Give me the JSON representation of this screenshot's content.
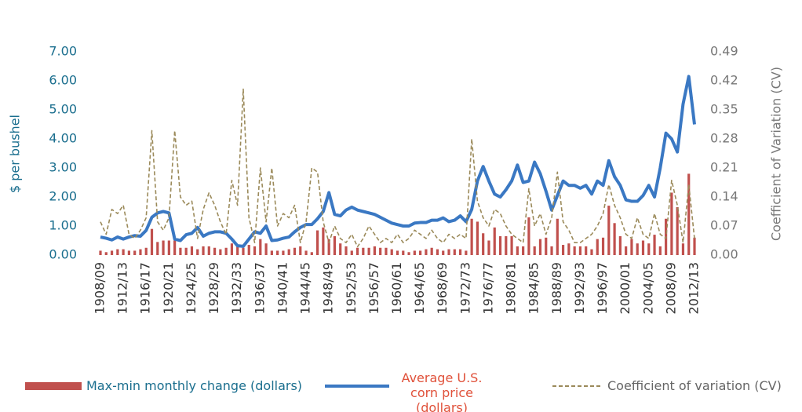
{
  "chart_data": {
    "type": "combo",
    "categories": [
      "1908/09",
      null,
      null,
      null,
      "1912/13",
      null,
      null,
      null,
      "1916/17",
      null,
      null,
      null,
      "1920/21",
      null,
      null,
      null,
      "1924/25",
      null,
      null,
      null,
      "1928/29",
      null,
      null,
      null,
      "1932/33",
      null,
      null,
      null,
      "1936/37",
      null,
      null,
      null,
      "1940/41",
      null,
      null,
      null,
      "1944/45",
      null,
      null,
      null,
      "1948/49",
      null,
      null,
      null,
      "1952/53",
      null,
      null,
      null,
      "1956/57",
      null,
      null,
      null,
      "1960/61",
      null,
      null,
      null,
      "1964/65",
      null,
      null,
      null,
      "1968/69",
      null,
      null,
      null,
      "1972/73",
      null,
      null,
      null,
      "1976/77",
      null,
      null,
      null,
      "1980/81",
      null,
      null,
      null,
      "1984/85",
      null,
      null,
      null,
      "1988/89",
      null,
      null,
      null,
      "1992/93",
      null,
      null,
      null,
      "1996/97",
      null,
      null,
      null,
      "2000/01",
      null,
      null,
      null,
      "2004/05",
      null,
      null,
      null,
      "2008/09",
      null,
      null,
      null,
      "2012/13"
    ],
    "series": [
      {
        "name": "Max-min monthly change (dollars)",
        "type": "bar",
        "color": "#c0504d",
        "axis": "y",
        "values": [
          0.15,
          0.1,
          0.15,
          0.2,
          0.2,
          0.15,
          0.15,
          0.2,
          0.25,
          0.9,
          0.45,
          0.5,
          0.5,
          0.5,
          0.25,
          0.25,
          0.3,
          0.2,
          0.3,
          0.3,
          0.25,
          0.2,
          0.25,
          0.4,
          0.3,
          0.25,
          0.35,
          0.3,
          0.55,
          0.4,
          0.15,
          0.15,
          0.15,
          0.2,
          0.25,
          0.3,
          0.15,
          0.1,
          0.85,
          0.95,
          0.55,
          0.65,
          0.4,
          0.3,
          0.15,
          0.25,
          0.25,
          0.25,
          0.3,
          0.25,
          0.25,
          0.2,
          0.15,
          0.15,
          0.1,
          0.15,
          0.15,
          0.2,
          0.25,
          0.2,
          0.15,
          0.2,
          0.2,
          0.2,
          0.15,
          1.25,
          1.15,
          0.75,
          0.5,
          0.95,
          0.65,
          0.65,
          0.65,
          0.3,
          0.3,
          1.3,
          0.3,
          0.55,
          0.6,
          0.3,
          1.25,
          0.35,
          0.4,
          0.3,
          0.3,
          0.3,
          0.2,
          0.55,
          0.6,
          1.7,
          1.1,
          0.65,
          0.3,
          0.55,
          0.4,
          0.5,
          0.4,
          0.7,
          0.3,
          1.25,
          2.15,
          1.65,
          0.4,
          2.8,
          0.6
        ]
      },
      {
        "name": "Average U.S. corn price (dollars)",
        "type": "line",
        "color": "#3a78c3",
        "axis": "y",
        "values": [
          0.62,
          0.58,
          0.52,
          0.62,
          0.55,
          0.62,
          0.67,
          0.65,
          0.85,
          1.3,
          1.45,
          1.5,
          1.45,
          0.55,
          0.5,
          0.7,
          0.75,
          0.95,
          0.65,
          0.75,
          0.8,
          0.8,
          0.75,
          0.55,
          0.32,
          0.3,
          0.55,
          0.8,
          0.75,
          1.0,
          0.5,
          0.52,
          0.58,
          0.62,
          0.8,
          0.95,
          1.05,
          1.05,
          1.25,
          1.5,
          2.15,
          1.4,
          1.35,
          1.55,
          1.65,
          1.55,
          1.5,
          1.45,
          1.4,
          1.3,
          1.2,
          1.1,
          1.05,
          1.0,
          1.0,
          1.1,
          1.12,
          1.12,
          1.2,
          1.2,
          1.28,
          1.15,
          1.2,
          1.35,
          1.15,
          1.57,
          2.55,
          3.05,
          2.55,
          2.1,
          2.0,
          2.25,
          2.55,
          3.1,
          2.5,
          2.55,
          3.2,
          2.8,
          2.2,
          1.55,
          2.05,
          2.55,
          2.4,
          2.4,
          2.3,
          2.4,
          2.1,
          2.55,
          2.4,
          3.25,
          2.7,
          2.4,
          1.9,
          1.85,
          1.85,
          2.05,
          2.4,
          2.0,
          3.0,
          4.2,
          4.0,
          3.55,
          5.2,
          6.15,
          4.5
        ]
      },
      {
        "name": "Coefficient of variation (CV)",
        "type": "dashed-line",
        "color": "#9b8a5a",
        "axis": "y2",
        "values": [
          0.08,
          0.05,
          0.11,
          0.1,
          0.12,
          0.05,
          0.04,
          0.06,
          0.09,
          0.3,
          0.08,
          0.06,
          0.09,
          0.3,
          0.14,
          0.12,
          0.13,
          0.04,
          0.11,
          0.15,
          0.12,
          0.08,
          0.05,
          0.18,
          0.12,
          0.4,
          0.09,
          0.03,
          0.21,
          0.08,
          0.21,
          0.07,
          0.1,
          0.09,
          0.12,
          0.03,
          0.08,
          0.21,
          0.2,
          0.08,
          0.03,
          0.07,
          0.04,
          0.03,
          0.05,
          0.02,
          0.04,
          0.07,
          0.05,
          0.03,
          0.04,
          0.03,
          0.05,
          0.03,
          0.04,
          0.06,
          0.05,
          0.04,
          0.06,
          0.04,
          0.03,
          0.05,
          0.04,
          0.05,
          0.04,
          0.28,
          0.13,
          0.09,
          0.07,
          0.11,
          0.1,
          0.07,
          0.05,
          0.04,
          0.03,
          0.16,
          0.07,
          0.1,
          0.05,
          0.09,
          0.2,
          0.08,
          0.06,
          0.03,
          0.03,
          0.04,
          0.05,
          0.07,
          0.1,
          0.17,
          0.12,
          0.09,
          0.05,
          0.04,
          0.09,
          0.05,
          0.04,
          0.1,
          0.05,
          0.04,
          0.18,
          0.12,
          0.03,
          0.17,
          0.04
        ]
      }
    ],
    "y_label": "$ per bushel",
    "y2_label": "Coefficient of Variation (CV)",
    "ylim": [
      0,
      7
    ],
    "yticks": [
      {
        "value": 0,
        "label": "0.00"
      },
      {
        "value": 1,
        "label": "1.00"
      },
      {
        "value": 2,
        "label": "2.00"
      },
      {
        "value": 3,
        "label": "3.00"
      },
      {
        "value": 4,
        "label": "4.00"
      },
      {
        "value": 5,
        "label": "5.00"
      },
      {
        "value": 6,
        "label": "6.00"
      },
      {
        "value": 7,
        "label": "7.00"
      }
    ],
    "y2lim": [
      0,
      0.49
    ],
    "y2ticks": [
      {
        "value": 0,
        "label": "0.00"
      },
      0.07,
      0.14,
      0.21,
      0.28,
      0.35,
      0.42,
      0.49
    ],
    "grid": false
  }
}
